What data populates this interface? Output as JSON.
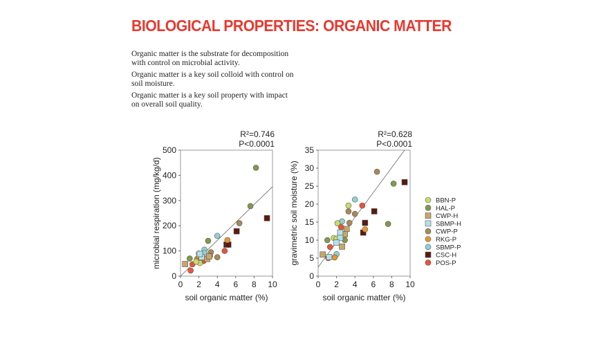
{
  "title": "BIOLOGICAL PROPERTIES: ORGANIC MATTER",
  "paragraphs": [
    "Organic matter is the substrate for decomposition with control on microbial activity.",
    "Organic matter is a key soil colloid with control on soil moisture.",
    "Organic matter is a key soil property with impact on overall soil quality."
  ],
  "colors": {
    "BBN-P": "#c9dc6c",
    "HAL-P": "#7f9a4c",
    "CWP-H": "#c8a766",
    "SBMP-H": "#b3e2ea",
    "CWP-P": "#a98a56",
    "RKG-P": "#e8962e",
    "SBMP-P": "#92d1cd",
    "CSC-H": "#5a1a10",
    "POS-P": "#e8553a"
  },
  "legend": [
    {
      "name": "BBN-P",
      "shape": "circle"
    },
    {
      "name": "HAL-P",
      "shape": "circle"
    },
    {
      "name": "CWP-H",
      "shape": "square"
    },
    {
      "name": "SBMP-H",
      "shape": "square"
    },
    {
      "name": "CWP-P",
      "shape": "circle"
    },
    {
      "name": "RKG-P",
      "shape": "circle"
    },
    {
      "name": "SBMP-P",
      "shape": "circle"
    },
    {
      "name": "CSC-H",
      "shape": "square"
    },
    {
      "name": "POS-P",
      "shape": "circle"
    }
  ],
  "chart_data": [
    {
      "type": "scatter",
      "xlabel": "soil organic matter (%)",
      "ylabel": "microbial respiration (mg/kg/d)",
      "xlim": [
        0,
        10
      ],
      "ylim": [
        0,
        500
      ],
      "xticks": [
        0,
        2,
        4,
        6,
        8,
        10
      ],
      "yticks": [
        0,
        100,
        200,
        300,
        400,
        500
      ],
      "r2": "R²=0.746",
      "p": "P<0.0001",
      "fit": [
        [
          0,
          0
        ],
        [
          10,
          355
        ]
      ],
      "points": [
        [
          8.2,
          430,
          "HAL-P"
        ],
        [
          7.6,
          278,
          "HAL-P"
        ],
        [
          1,
          70,
          "HAL-P"
        ],
        [
          3,
          140,
          "HAL-P"
        ],
        [
          6.4,
          210,
          "CWP-P"
        ],
        [
          3.3,
          95,
          "CWP-P"
        ],
        [
          4,
          75,
          "CWP-P"
        ],
        [
          3.2,
          80,
          "CWP-P"
        ],
        [
          9.4,
          230,
          "CSC-H"
        ],
        [
          6.1,
          178,
          "CSC-H"
        ],
        [
          5,
          125,
          "CSC-H"
        ],
        [
          5.2,
          125,
          "CSC-H"
        ],
        [
          4,
          160,
          "SBMP-P"
        ],
        [
          2.6,
          105,
          "SBMP-P"
        ],
        [
          2,
          90,
          "SBMP-P"
        ],
        [
          2.6,
          92,
          "SBMP-P"
        ],
        [
          5.1,
          143,
          "RKG-P"
        ],
        [
          1.8,
          68,
          "RKG-P"
        ],
        [
          2,
          75,
          "RKG-P"
        ],
        [
          1.9,
          60,
          "RKG-P"
        ],
        [
          4.8,
          100,
          "POS-P"
        ],
        [
          1.1,
          22,
          "POS-P"
        ],
        [
          1.3,
          47,
          "POS-P"
        ],
        [
          2.5,
          60,
          "POS-P"
        ],
        [
          0.5,
          48,
          "CWP-H"
        ],
        [
          2.9,
          68,
          "CWP-H"
        ],
        [
          3.1,
          78,
          "CWP-H"
        ],
        [
          2.3,
          75,
          "SBMP-H"
        ],
        [
          2.1,
          88,
          "SBMP-H"
        ],
        [
          2.1,
          52,
          "BBN-P"
        ],
        [
          1.7,
          57,
          "BBN-P"
        ]
      ]
    },
    {
      "type": "scatter",
      "xlabel": "soil organic matter (%)",
      "ylabel": "gravimetric soil moisture (%)",
      "xlim": [
        0,
        10
      ],
      "ylim": [
        0,
        35
      ],
      "xticks": [
        0,
        2,
        4,
        6,
        8,
        10
      ],
      "yticks": [
        0,
        5,
        10,
        15,
        20,
        25,
        30,
        35
      ],
      "r2": "R²=0.628",
      "p": "P<0.0001",
      "fit": [
        [
          0,
          2.5
        ],
        [
          9.4,
          35
        ]
      ],
      "points": [
        [
          6.4,
          29,
          "CWP-P"
        ],
        [
          3.3,
          18,
          "CWP-P"
        ],
        [
          4,
          17.3,
          "CWP-P"
        ],
        [
          3.4,
          14.8,
          "CWP-P"
        ],
        [
          8.2,
          25.7,
          "HAL-P"
        ],
        [
          7.6,
          14.5,
          "HAL-P"
        ],
        [
          1,
          10,
          "HAL-P"
        ],
        [
          2.9,
          10,
          "HAL-P"
        ],
        [
          9.4,
          26.1,
          "CSC-H"
        ],
        [
          6.1,
          18,
          "CSC-H"
        ],
        [
          5.1,
          14.8,
          "CSC-H"
        ],
        [
          4.9,
          12.1,
          "CSC-H"
        ],
        [
          4,
          21.3,
          "SBMP-P"
        ],
        [
          2.6,
          15.2,
          "SBMP-P"
        ],
        [
          2,
          6.1,
          "SBMP-P"
        ],
        [
          3.3,
          19.6,
          "BBN-P"
        ],
        [
          2.1,
          14.7,
          "BBN-P"
        ],
        [
          1.7,
          10.6,
          "BBN-P"
        ],
        [
          2,
          10.4,
          "BBN-P"
        ],
        [
          4.8,
          19.6,
          "POS-P"
        ],
        [
          2.5,
          13.6,
          "POS-P"
        ],
        [
          1.3,
          8.1,
          "POS-P"
        ],
        [
          1.1,
          5,
          "POS-P"
        ],
        [
          0.5,
          6,
          "CWP-H"
        ],
        [
          3.1,
          13.1,
          "CWP-H"
        ],
        [
          2.9,
          11.6,
          "CWP-H"
        ],
        [
          2.6,
          8.2,
          "CWP-H"
        ],
        [
          2.4,
          12.1,
          "SBMP-H"
        ],
        [
          2.4,
          10.6,
          "SBMP-H"
        ],
        [
          2,
          9.3,
          "SBMP-H"
        ],
        [
          1.2,
          5.3,
          "SBMP-H"
        ],
        [
          5.1,
          13,
          "RKG-P"
        ],
        [
          1.8,
          5.2,
          "RKG-P"
        ]
      ]
    }
  ]
}
